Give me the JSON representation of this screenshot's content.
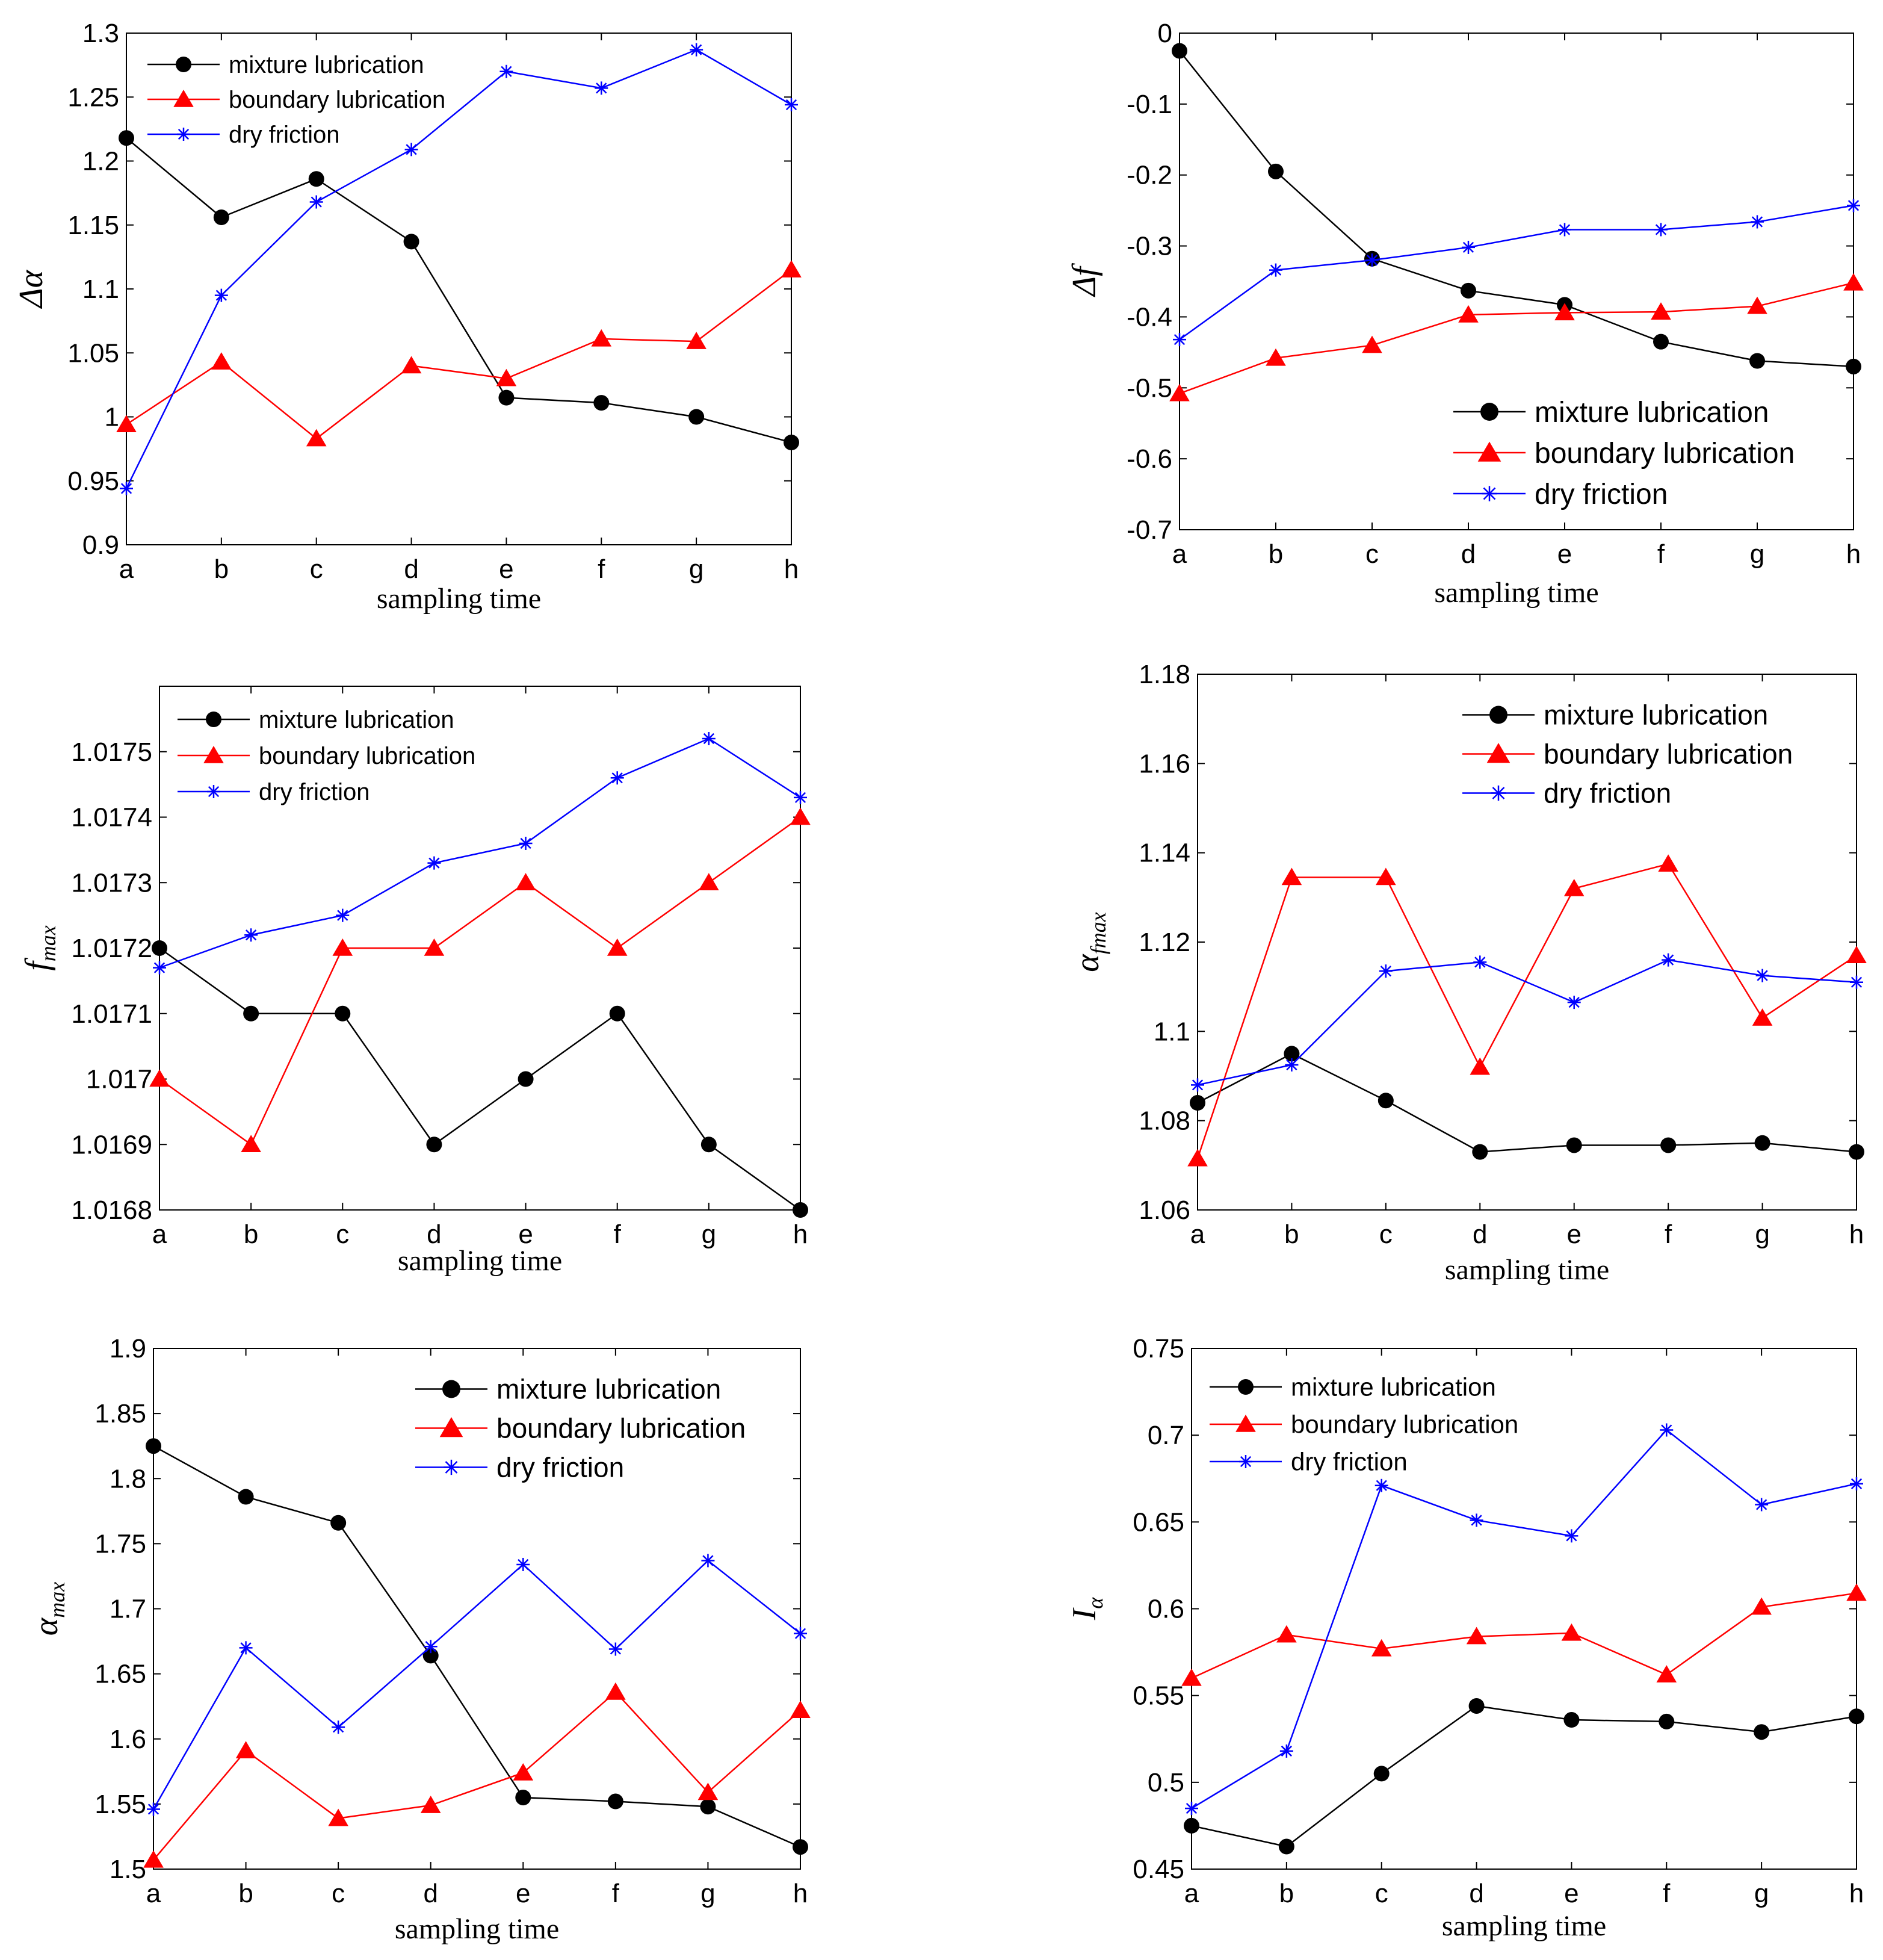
{
  "figure": {
    "description_free": true
  },
  "colors": {
    "mixture": "#000000",
    "boundary": "#ff0000",
    "dry": "#0000ff"
  },
  "chart_data": [
    {
      "type": "line",
      "title": "",
      "xlabel": "sampling time",
      "ylabel": "Δα",
      "ylabel_sub": "",
      "categories": [
        "a",
        "b",
        "c",
        "d",
        "e",
        "f",
        "g",
        "h"
      ],
      "ylim": [
        0.9,
        1.3
      ],
      "yticks": [
        0.9,
        0.95,
        1,
        1.05,
        1.1,
        1.15,
        1.2,
        1.25,
        1.3
      ],
      "ytick_labels": [
        "0.9",
        "0.95",
        "1",
        "1.05",
        "1.1",
        "1.15",
        "1.2",
        "1.25",
        "1.3"
      ],
      "legend_position": "top-left",
      "legend": [
        "mixture lubrication",
        "boundary lubrication",
        "dry friction"
      ],
      "series": [
        {
          "name": "mixture lubrication",
          "marker": "circle",
          "values": [
            1.218,
            1.156,
            1.186,
            1.137,
            1.015,
            1.011,
            1.0,
            0.98
          ]
        },
        {
          "name": "boundary lubrication",
          "marker": "triangle",
          "values": [
            0.994,
            1.043,
            0.983,
            1.04,
            1.03,
            1.061,
            1.059,
            1.115
          ]
        },
        {
          "name": "dry friction",
          "marker": "star",
          "values": [
            0.944,
            1.095,
            1.168,
            1.209,
            1.27,
            1.257,
            1.287,
            1.244
          ]
        }
      ]
    },
    {
      "type": "line",
      "title": "",
      "xlabel": "sampling time",
      "ylabel": "Δf",
      "ylabel_sub": "",
      "categories": [
        "a",
        "b",
        "c",
        "d",
        "e",
        "f",
        "g",
        "h"
      ],
      "ylim": [
        -0.7,
        0
      ],
      "yticks": [
        -0.7,
        -0.6,
        -0.5,
        -0.4,
        -0.3,
        -0.2,
        -0.1,
        0
      ],
      "ytick_labels": [
        "-0.7",
        "-0.6",
        "-0.5",
        "-0.4",
        "-0.3",
        "-0.2",
        "-0.1",
        "0"
      ],
      "legend_position": "bottom-right",
      "legend": [
        "mixture lubrication",
        "boundary lubrication",
        "dry friction"
      ],
      "series": [
        {
          "name": "mixture lubrication",
          "marker": "circle",
          "values": [
            -0.025,
            -0.195,
            -0.318,
            -0.363,
            -0.383,
            -0.435,
            -0.462,
            -0.47
          ]
        },
        {
          "name": "boundary lubrication",
          "marker": "triangle",
          "values": [
            -0.508,
            -0.458,
            -0.44,
            -0.397,
            -0.394,
            -0.393,
            -0.385,
            -0.352
          ]
        },
        {
          "name": "dry friction",
          "marker": "star",
          "values": [
            -0.432,
            -0.334,
            -0.32,
            -0.302,
            -0.277,
            -0.277,
            -0.266,
            -0.243
          ]
        }
      ]
    },
    {
      "type": "line",
      "title": "",
      "xlabel": "sampling time",
      "ylabel": "f",
      "ylabel_sub": "max",
      "categories": [
        "a",
        "b",
        "c",
        "d",
        "e",
        "f",
        "g",
        "h"
      ],
      "ylim": [
        1.0168,
        1.0176
      ],
      "yticks": [
        1.0168,
        1.0169,
        1.017,
        1.0171,
        1.0172,
        1.0173,
        1.0174,
        1.0175
      ],
      "ytick_labels": [
        "1.0168",
        "1.0169",
        "1.017",
        "1.0171",
        "1.0172",
        "1.0173",
        "1.0174",
        "1.0175"
      ],
      "legend_position": "top-left",
      "legend": [
        "mixture lubrication",
        "boundary lubrication",
        "dry friction"
      ],
      "series": [
        {
          "name": "mixture lubrication",
          "marker": "circle",
          "values": [
            1.0172,
            1.0171,
            1.0171,
            1.0169,
            1.017,
            1.0171,
            1.0169,
            1.0168
          ]
        },
        {
          "name": "boundary lubrication",
          "marker": "triangle",
          "values": [
            1.017,
            1.0169,
            1.0172,
            1.0172,
            1.0173,
            1.0172,
            1.0173,
            1.0174
          ]
        },
        {
          "name": "dry friction",
          "marker": "star",
          "values": [
            1.01717,
            1.01722,
            1.01725,
            1.01733,
            1.01736,
            1.01746,
            1.01752,
            1.01743
          ]
        }
      ]
    },
    {
      "type": "line",
      "title": "",
      "xlabel": "sampling time",
      "ylabel": "α",
      "ylabel_sub": "fmax",
      "categories": [
        "a",
        "b",
        "c",
        "d",
        "e",
        "f",
        "g",
        "h"
      ],
      "ylim": [
        1.06,
        1.18
      ],
      "yticks": [
        1.06,
        1.08,
        1.1,
        1.12,
        1.14,
        1.16,
        1.18
      ],
      "ytick_labels": [
        "1.06",
        "1.08",
        "1.1",
        "1.12",
        "1.14",
        "1.16",
        "1.18"
      ],
      "legend_position": "top-right",
      "legend": [
        "mixture lubrication",
        "boundary lubrication",
        "dry friction"
      ],
      "series": [
        {
          "name": "mixture lubrication",
          "marker": "circle",
          "values": [
            1.084,
            1.095,
            1.0845,
            1.073,
            1.0745,
            1.0745,
            1.075,
            1.073
          ]
        },
        {
          "name": "boundary lubrication",
          "marker": "triangle",
          "values": [
            1.0715,
            1.1345,
            1.1345,
            1.092,
            1.132,
            1.1375,
            1.103,
            1.117
          ]
        },
        {
          "name": "dry friction",
          "marker": "star",
          "values": [
            1.088,
            1.0925,
            1.1135,
            1.1155,
            1.1065,
            1.116,
            1.1125,
            1.111
          ]
        }
      ]
    },
    {
      "type": "line",
      "title": "",
      "xlabel": "sampling time",
      "ylabel": "α",
      "ylabel_sub": "max",
      "categories": [
        "a",
        "b",
        "c",
        "d",
        "e",
        "f",
        "g",
        "h"
      ],
      "ylim": [
        1.5,
        1.9
      ],
      "yticks": [
        1.5,
        1.55,
        1.6,
        1.65,
        1.7,
        1.75,
        1.8,
        1.85,
        1.9
      ],
      "ytick_labels": [
        "1.5",
        "1.55",
        "1.6",
        "1.65",
        "1.7",
        "1.75",
        "1.8",
        "1.85",
        "1.9"
      ],
      "legend_position": "top-right",
      "legend": [
        "mixture lubrication",
        "boundary lubrication",
        "dry friction"
      ],
      "series": [
        {
          "name": "mixture lubrication",
          "marker": "circle",
          "values": [
            1.825,
            1.786,
            1.766,
            1.664,
            1.555,
            1.552,
            1.548,
            1.517
          ]
        },
        {
          "name": "boundary lubrication",
          "marker": "triangle",
          "values": [
            1.507,
            1.591,
            1.539,
            1.549,
            1.574,
            1.636,
            1.559,
            1.622
          ]
        },
        {
          "name": "dry friction",
          "marker": "star",
          "values": [
            1.546,
            1.67,
            1.609,
            1.671,
            1.734,
            1.669,
            1.737,
            1.681
          ]
        }
      ]
    },
    {
      "type": "line",
      "title": "",
      "xlabel": "sampling time",
      "ylabel": "I",
      "ylabel_sub": "α",
      "categories": [
        "a",
        "b",
        "c",
        "d",
        "e",
        "f",
        "g",
        "h"
      ],
      "ylim": [
        0.45,
        0.75
      ],
      "yticks": [
        0.45,
        0.5,
        0.55,
        0.6,
        0.65,
        0.7,
        0.75
      ],
      "ytick_labels": [
        "0.45",
        "0.5",
        "0.55",
        "0.6",
        "0.65",
        "0.7",
        "0.75"
      ],
      "legend_position": "top-left",
      "legend": [
        "mixture lubrication",
        "boundary lubrication",
        "dry friction"
      ],
      "series": [
        {
          "name": "mixture lubrication",
          "marker": "circle",
          "values": [
            0.475,
            0.463,
            0.505,
            0.544,
            0.536,
            0.535,
            0.529,
            0.538
          ]
        },
        {
          "name": "boundary lubrication",
          "marker": "triangle",
          "values": [
            0.56,
            0.585,
            0.577,
            0.584,
            0.586,
            0.562,
            0.601,
            0.609
          ]
        },
        {
          "name": "dry friction",
          "marker": "star",
          "values": [
            0.485,
            0.518,
            0.671,
            0.651,
            0.642,
            0.703,
            0.66,
            0.672
          ]
        }
      ]
    }
  ]
}
